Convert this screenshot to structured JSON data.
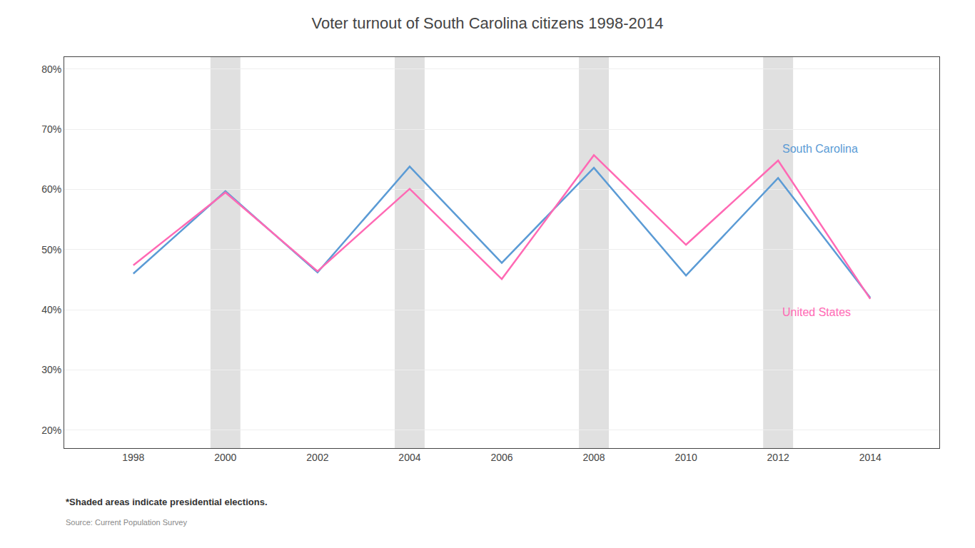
{
  "chart_data": {
    "type": "line",
    "title": "Voter turnout of South Carolina citizens 1998-2014",
    "x": [
      1998,
      2000,
      2002,
      2004,
      2006,
      2008,
      2010,
      2012,
      2014
    ],
    "series": [
      {
        "name": "South Carolina",
        "color": "#5b9bd5",
        "values": [
          0.46,
          0.597,
          0.462,
          0.638,
          0.478,
          0.636,
          0.457,
          0.619,
          0.42
        ]
      },
      {
        "name": "United States",
        "color": "#ff69b4",
        "values": [
          0.474,
          0.595,
          0.464,
          0.601,
          0.451,
          0.657,
          0.508,
          0.648,
          0.418
        ]
      }
    ],
    "shaded_x": [
      2000,
      2004,
      2008,
      2012
    ],
    "xlim": [
      1996.5,
      2015.5
    ],
    "xticks": [
      1998,
      2000,
      2002,
      2004,
      2006,
      2008,
      2010,
      2012,
      2014
    ],
    "ylim": [
      0.17,
      0.82
    ],
    "yticks": [
      {
        "value": 0.2,
        "label": "20%"
      },
      {
        "value": 0.3,
        "label": "30%"
      },
      {
        "value": 0.4,
        "label": "40%"
      },
      {
        "value": 0.5,
        "label": "50%"
      },
      {
        "value": 0.6,
        "label": "60%"
      },
      {
        "value": 0.7,
        "label": "70%"
      },
      {
        "value": 0.8,
        "label": "80%"
      }
    ],
    "grid": true,
    "annotations": [
      "*Shaded areas indicate presidential elections.",
      "Source: Current Population Survey"
    ]
  }
}
